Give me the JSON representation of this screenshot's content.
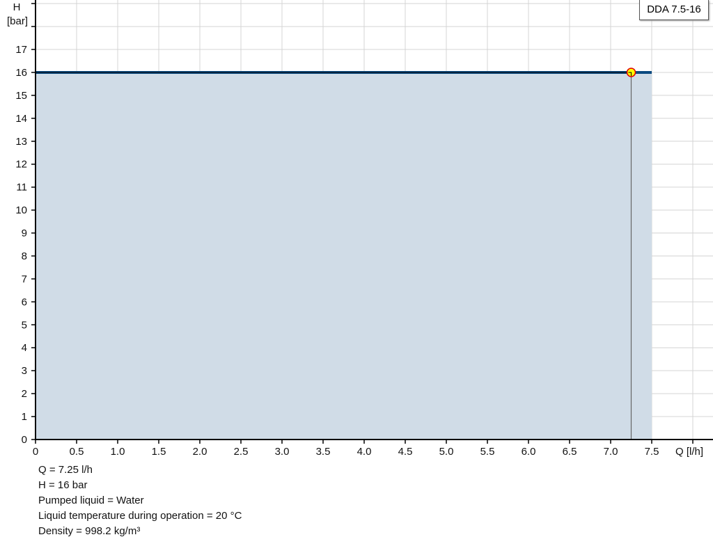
{
  "chart_data": {
    "type": "area",
    "title": "",
    "xlabel": "Q [l/h]",
    "ylabel_line1": "H",
    "ylabel_line2": "[bar]",
    "xlim": [
      0,
      8.25
    ],
    "ylim": [
      0,
      19
    ],
    "x_ticks": [
      "0",
      "0.5",
      "1.0",
      "1.5",
      "2.0",
      "2.5",
      "3.0",
      "3.5",
      "4.0",
      "4.5",
      "5.0",
      "5.5",
      "6.0",
      "6.5",
      "7.0",
      "7.5"
    ],
    "y_ticks": [
      "0",
      "1",
      "2",
      "3",
      "4",
      "5",
      "6",
      "7",
      "8",
      "9",
      "10",
      "11",
      "12",
      "13",
      "14",
      "15",
      "16",
      "17"
    ],
    "grid": true,
    "legend_position": "top-right",
    "series": [
      {
        "name": "DDA 7.5-16",
        "x": [
          0,
          7.5
        ],
        "y": [
          16,
          16
        ],
        "color": "#0a4a80",
        "fill": "#d0dce7"
      }
    ],
    "operating_point": {
      "x": 7.25,
      "y": 16,
      "fill": "#ffff00",
      "stroke": "#e00000"
    }
  },
  "info": {
    "q": "Q = 7.25 l/h",
    "h": "H = 16 bar",
    "liquid": "Pumped liquid = Water",
    "temperature": "Liquid temperature during operation = 20 °C",
    "density": "Density = 998.2 kg/m³"
  }
}
